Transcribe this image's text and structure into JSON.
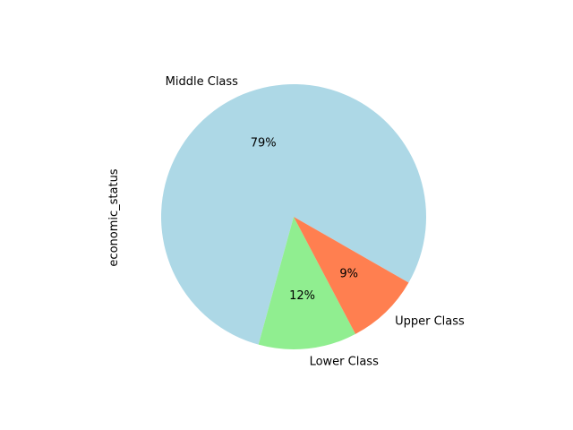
{
  "chart_data": {
    "type": "pie",
    "ylabel": "economic_status",
    "slices": [
      {
        "label": "Middle Class",
        "value": 79,
        "pct_label": "79%",
        "color": "#add8e6"
      },
      {
        "label": "Lower Class",
        "value": 12,
        "pct_label": "12%",
        "color": "#90ee90"
      },
      {
        "label": "Upper Class",
        "value": 9,
        "pct_label": "9%",
        "color": "#ff7f50"
      }
    ]
  }
}
